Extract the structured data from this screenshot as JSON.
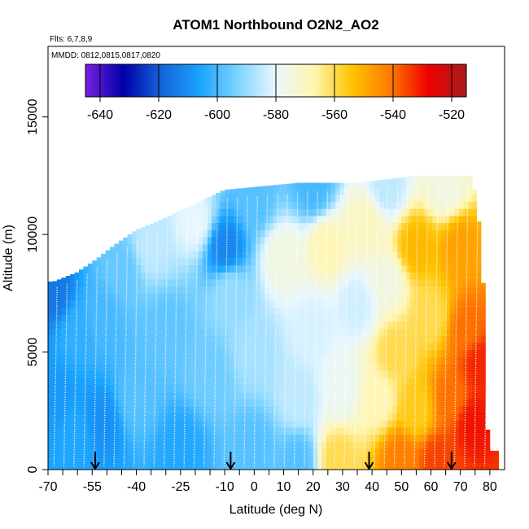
{
  "chart_data": {
    "type": "heatmap",
    "title": "ATOM1 Northbound O2N2_AO2",
    "flights_note": "Flts: 6,7,8,9",
    "dates_note": "MMDD: 0812,0815,0817,0820",
    "xlabel": "Latitude (deg N)",
    "ylabel": "Altitude (m)",
    "xlim": [
      -70,
      85
    ],
    "ylim": [
      0,
      18000
    ],
    "x_ticks": [
      -70,
      -55,
      -40,
      -25,
      -10,
      0,
      10,
      20,
      30,
      40,
      50,
      60,
      70,
      80
    ],
    "x_ticks_minor": [
      -65,
      -60,
      -50,
      -45,
      -35,
      -30,
      -20,
      -15,
      -5,
      5,
      15,
      25,
      35,
      45,
      55,
      65,
      75
    ],
    "y_ticks": [
      0,
      5000,
      10000,
      15000
    ],
    "colorbar": {
      "range": [
        -645,
        -515
      ],
      "ticks": [
        -640,
        -620,
        -600,
        -580,
        -560,
        -540,
        -520
      ],
      "colors": [
        "#7b1fe0",
        "#0000a8",
        "#1565d8",
        "#1aa3ff",
        "#7dd3ff",
        "#e8f7ff",
        "#fff6b0",
        "#ffc300",
        "#ff7a00",
        "#ee0000",
        "#a81c1c"
      ]
    },
    "arrows_lat": [
      -54,
      -8,
      39,
      67
    ],
    "tops": [
      {
        "lat": -68,
        "alt": 8000
      },
      {
        "lat": -60,
        "alt": 8400
      },
      {
        "lat": -53,
        "alt": 9000
      },
      {
        "lat": -48,
        "alt": 9500
      },
      {
        "lat": -40,
        "alt": 10200
      },
      {
        "lat": -32,
        "alt": 10600
      },
      {
        "lat": -22,
        "alt": 11200
      },
      {
        "lat": -10,
        "alt": 11900
      },
      {
        "lat": 15,
        "alt": 12200
      },
      {
        "lat": 35,
        "alt": 12200
      },
      {
        "lat": 55,
        "alt": 12500
      },
      {
        "lat": 74,
        "alt": 12500
      },
      {
        "lat": 76,
        "alt": 11000
      },
      {
        "lat": 78,
        "alt": 7500
      },
      {
        "lat": 79,
        "alt": 2000
      },
      {
        "lat": 80,
        "alt": 800
      }
    ],
    "zones": [
      {
        "lat": -68,
        "alt": 3000,
        "value": -608
      },
      {
        "lat": -68,
        "alt": 7500,
        "value": -615
      },
      {
        "lat": -60,
        "alt": 1500,
        "value": -605
      },
      {
        "lat": -60,
        "alt": 6000,
        "value": -603
      },
      {
        "lat": -52,
        "alt": 2000,
        "value": -610
      },
      {
        "lat": -52,
        "alt": 6500,
        "value": -600
      },
      {
        "lat": -45,
        "alt": 8500,
        "value": -596
      },
      {
        "lat": -40,
        "alt": 3000,
        "value": -598
      },
      {
        "lat": -35,
        "alt": 9500,
        "value": -585
      },
      {
        "lat": -30,
        "alt": 6000,
        "value": -597
      },
      {
        "lat": -25,
        "alt": 1000,
        "value": -605
      },
      {
        "lat": -20,
        "alt": 10500,
        "value": -580
      },
      {
        "lat": -15,
        "alt": 4000,
        "value": -595
      },
      {
        "lat": -10,
        "alt": 9500,
        "value": -612
      },
      {
        "lat": -8,
        "alt": 7500,
        "value": -590
      },
      {
        "lat": 0,
        "alt": 11500,
        "value": -598
      },
      {
        "lat": 0,
        "alt": 5000,
        "value": -588
      },
      {
        "lat": 0,
        "alt": 1000,
        "value": -598
      },
      {
        "lat": 10,
        "alt": 9000,
        "value": -575
      },
      {
        "lat": 15,
        "alt": 3000,
        "value": -585
      },
      {
        "lat": 15,
        "alt": 400,
        "value": -598
      },
      {
        "lat": 20,
        "alt": 12000,
        "value": -600
      },
      {
        "lat": 20,
        "alt": 6000,
        "value": -582
      },
      {
        "lat": 25,
        "alt": 9500,
        "value": -568
      },
      {
        "lat": 28,
        "alt": 400,
        "value": -560
      },
      {
        "lat": 30,
        "alt": 3500,
        "value": -578
      },
      {
        "lat": 35,
        "alt": 7000,
        "value": -583
      },
      {
        "lat": 38,
        "alt": 10500,
        "value": -570
      },
      {
        "lat": 42,
        "alt": 3000,
        "value": -568
      },
      {
        "lat": 45,
        "alt": 12000,
        "value": -585
      },
      {
        "lat": 45,
        "alt": 8000,
        "value": -575
      },
      {
        "lat": 48,
        "alt": 5000,
        "value": -560
      },
      {
        "lat": 50,
        "alt": 500,
        "value": -542
      },
      {
        "lat": 55,
        "alt": 9500,
        "value": -552
      },
      {
        "lat": 55,
        "alt": 2500,
        "value": -556
      },
      {
        "lat": 60,
        "alt": 6500,
        "value": -560
      },
      {
        "lat": 62,
        "alt": 400,
        "value": -535
      },
      {
        "lat": 65,
        "alt": 12000,
        "value": -575
      },
      {
        "lat": 67,
        "alt": 3000,
        "value": -540
      },
      {
        "lat": 70,
        "alt": 9500,
        "value": -548
      },
      {
        "lat": 72,
        "alt": 6000,
        "value": -540
      },
      {
        "lat": 74,
        "alt": 2000,
        "value": -530
      },
      {
        "lat": 77,
        "alt": 4500,
        "value": -532
      }
    ]
  }
}
